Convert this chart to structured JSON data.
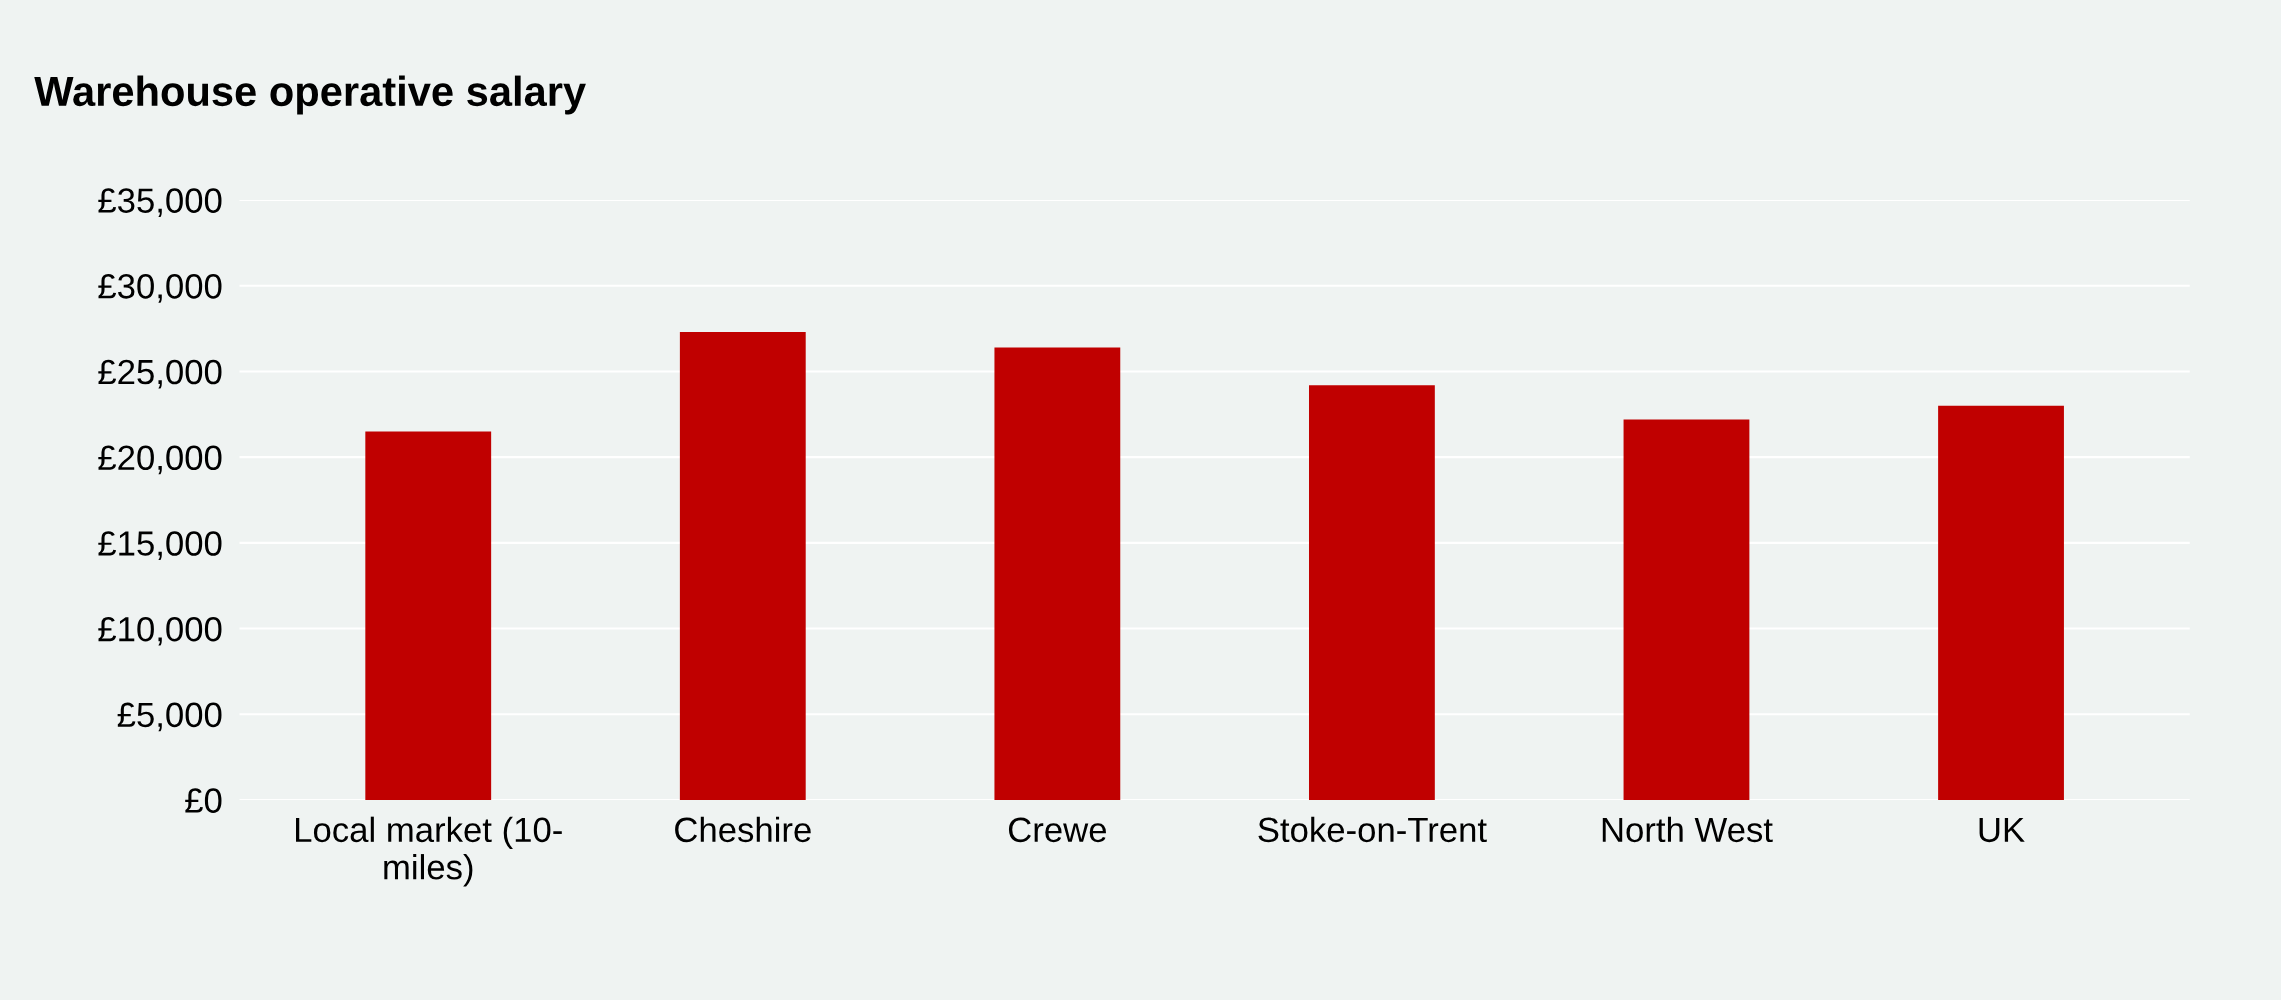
{
  "chart_data": {
    "type": "bar",
    "title": "Warehouse operative salary",
    "categories": [
      "Local market (10-\nmiles)",
      "Cheshire",
      "Crewe",
      "Stoke-on-Trent",
      "North West",
      "UK"
    ],
    "values": [
      21500,
      27300,
      26400,
      24200,
      22200,
      23000
    ],
    "color": "#c00000",
    "ylim": [
      0,
      35000
    ],
    "yticks": [
      {
        "value": 0,
        "label": "£0"
      },
      {
        "value": 5000,
        "label": "£5,000"
      },
      {
        "value": 10000,
        "label": "£10,000"
      },
      {
        "value": 15000,
        "label": "£15,000"
      },
      {
        "value": 20000,
        "label": "£20,000"
      },
      {
        "value": 25000,
        "label": "£25,000"
      },
      {
        "value": 30000,
        "label": "£30,000"
      },
      {
        "value": 35000,
        "label": "£35,000"
      }
    ],
    "grid": "y",
    "legend": false
  }
}
